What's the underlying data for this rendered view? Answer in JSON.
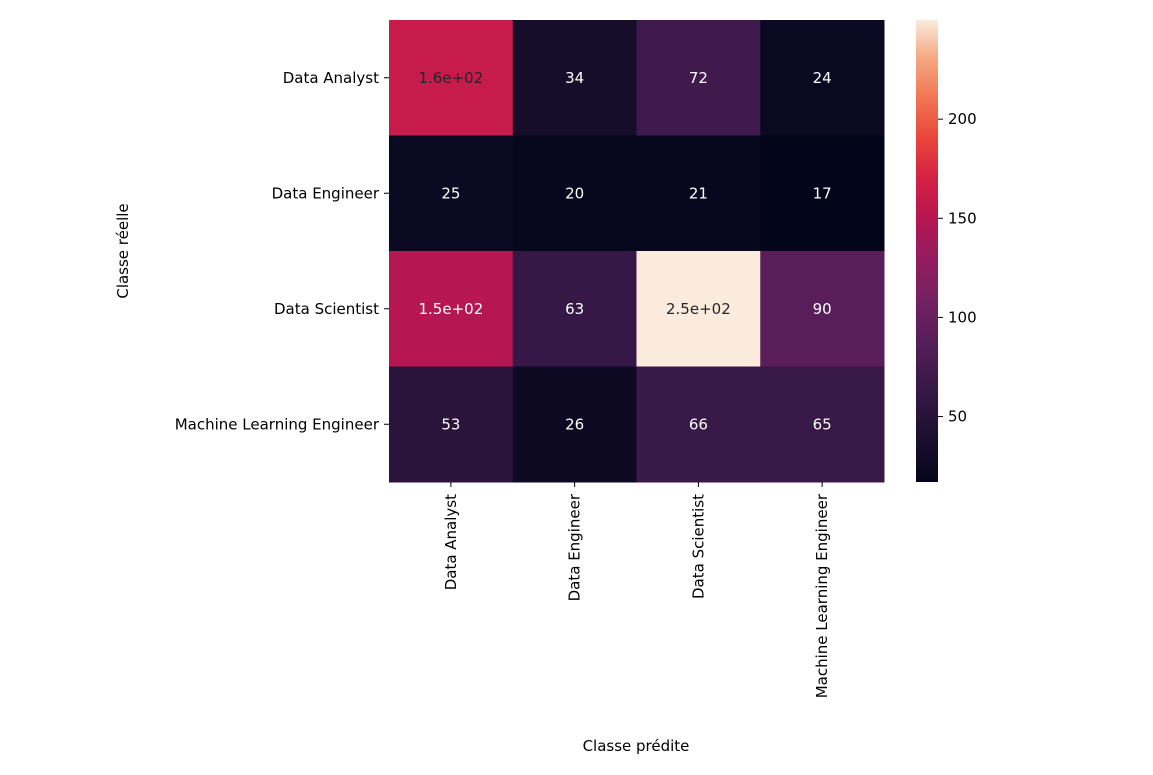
{
  "chart_data": {
    "type": "heatmap",
    "xlabel": "Classe prédite",
    "ylabel": "Classe réelle",
    "row_labels": [
      "Data Analyst",
      "Data Engineer",
      "Data Scientist",
      "Machine Learning Engineer"
    ],
    "col_labels": [
      "Data Analyst",
      "Data Engineer",
      "Data Scientist",
      "Machine Learning Engineer"
    ],
    "values": [
      [
        160,
        34,
        72,
        24
      ],
      [
        25,
        20,
        21,
        17
      ],
      [
        150,
        63,
        250,
        90
      ],
      [
        53,
        26,
        66,
        65
      ]
    ],
    "annotations": [
      [
        "1.6e+02",
        "34",
        "72",
        "24"
      ],
      [
        "25",
        "20",
        "21",
        "17"
      ],
      [
        "1.5e+02",
        "63",
        "2.5e+02",
        "90"
      ],
      [
        "53",
        "26",
        "66",
        "65"
      ]
    ],
    "colormap": "rocket",
    "colorbar": {
      "min": 17,
      "max": 250,
      "ticks": [
        50,
        100,
        150,
        200
      ]
    },
    "grid": false
  }
}
